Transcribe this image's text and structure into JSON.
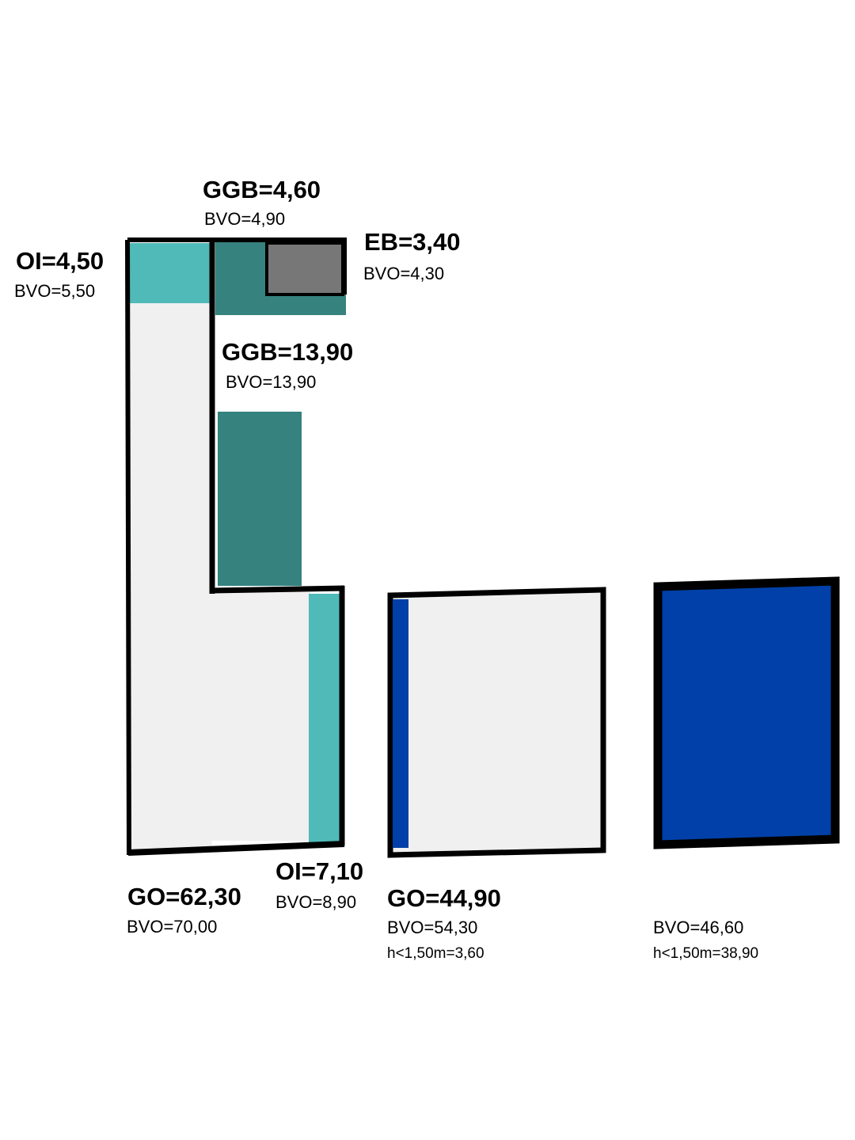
{
  "areas": [
    {
      "label": "GGB=4,60",
      "bvo": "BVO=4,90"
    },
    {
      "label": "EB=3,40",
      "bvo": "BVO=4,30"
    },
    {
      "label": "OI=4,50",
      "bvo": "BVO=5,50"
    },
    {
      "label": "GGB=13,90",
      "bvo": "BVO=13,90"
    },
    {
      "label": "OI=7,10",
      "bvo": "BVO=8,90"
    },
    {
      "label": "GO=62,30",
      "bvo": "BVO=70,00"
    },
    {
      "label": "GO=44,90",
      "bvo": "BVO=54,30",
      "note": "h<1,50m=3,60"
    },
    {
      "bvo": "BVO=46,60",
      "note": "h<1,50m=38,90"
    }
  ]
}
